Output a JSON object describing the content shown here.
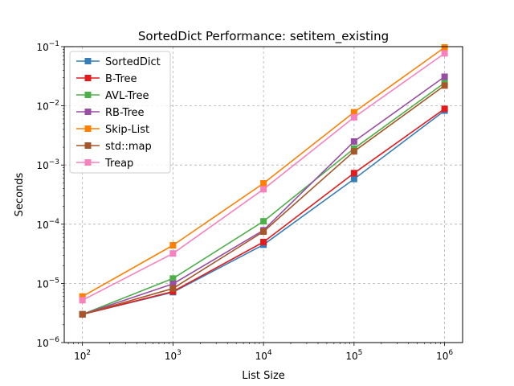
{
  "chart_data": {
    "type": "line",
    "title": "SortedDict Performance: setitem_existing",
    "xlabel": "List Size",
    "ylabel": "Seconds",
    "x_scale": "log",
    "y_scale": "log",
    "xlim": [
      63,
      1580000
    ],
    "ylim": [
      1e-06,
      0.1
    ],
    "grid": true,
    "legend_position": "upper-left",
    "x_tick_values": [
      100,
      1000,
      10000,
      100000,
      1000000
    ],
    "x_tick_labels": [
      {
        "base": "10",
        "exp": "2"
      },
      {
        "base": "10",
        "exp": "3"
      },
      {
        "base": "10",
        "exp": "4"
      },
      {
        "base": "10",
        "exp": "5"
      },
      {
        "base": "10",
        "exp": "6"
      }
    ],
    "y_tick_values": [
      1e-06,
      1e-05,
      0.0001,
      0.001,
      0.01,
      0.1
    ],
    "y_tick_labels": [
      {
        "base": "10",
        "exp": "−6"
      },
      {
        "base": "10",
        "exp": "−5"
      },
      {
        "base": "10",
        "exp": "−4"
      },
      {
        "base": "10",
        "exp": "−3"
      },
      {
        "base": "10",
        "exp": "−2"
      },
      {
        "base": "10",
        "exp": "−1"
      }
    ],
    "x": [
      100,
      1000,
      10000,
      100000,
      1000000
    ],
    "series": [
      {
        "name": "SortedDict",
        "color": "#377eb8",
        "values": [
          3e-06,
          7.1e-06,
          4.5e-05,
          0.00058,
          0.0083
        ]
      },
      {
        "name": "B-Tree",
        "color": "#e41a1c",
        "values": [
          3e-06,
          7.3e-06,
          5e-05,
          0.00073,
          0.0089
        ]
      },
      {
        "name": "AVL-Tree",
        "color": "#4daf4a",
        "values": [
          3e-06,
          1.21e-05,
          0.000112,
          0.0019,
          0.0245
        ]
      },
      {
        "name": "RB-Tree",
        "color": "#984ea3",
        "values": [
          3e-06,
          9.8e-06,
          7.9e-05,
          0.0025,
          0.031
        ]
      },
      {
        "name": "Skip-List",
        "color": "#ff7f00",
        "values": [
          6e-06,
          4.4e-05,
          0.00049,
          0.0078,
          0.097
        ]
      },
      {
        "name": "std::map",
        "color": "#a65628",
        "values": [
          3e-06,
          8.2e-06,
          7.5e-05,
          0.0017,
          0.022
        ]
      },
      {
        "name": "Treap",
        "color": "#f781bf",
        "values": [
          5.2e-06,
          3.2e-05,
          0.00039,
          0.0064,
          0.077
        ]
      }
    ]
  }
}
